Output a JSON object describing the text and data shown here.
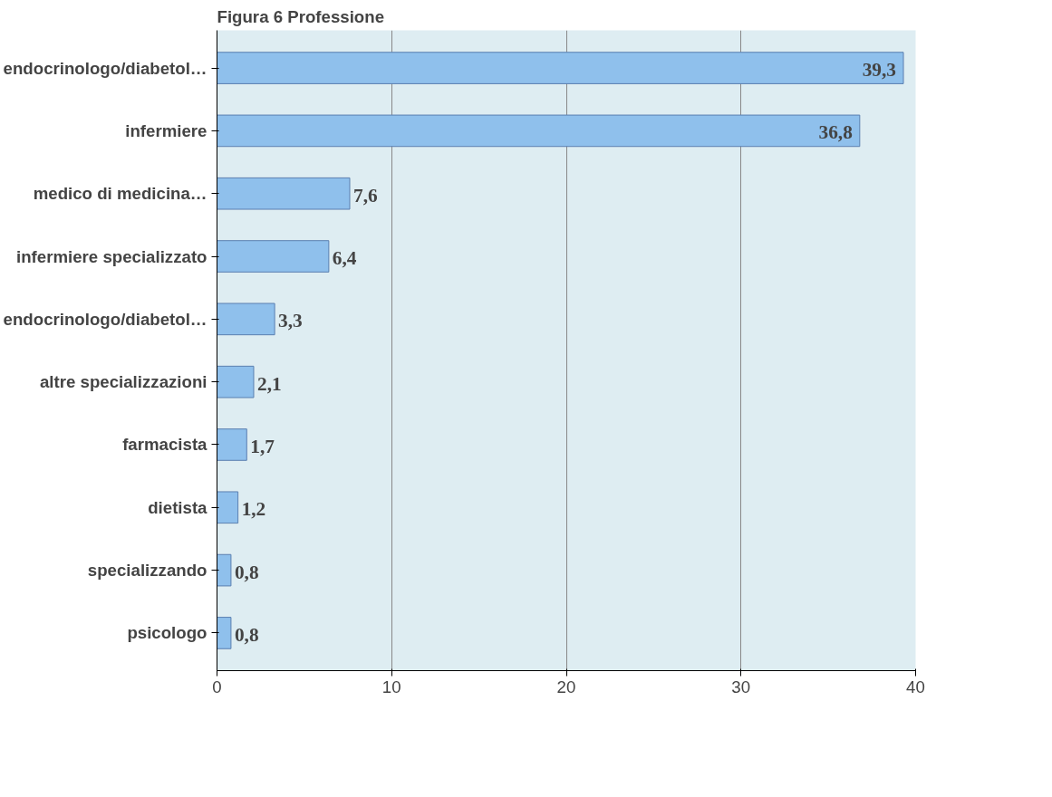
{
  "chart_data": {
    "type": "bar",
    "orientation": "horizontal",
    "title": "Figura 6 Professione",
    "categories": [
      "endocrinologo/diabetol…",
      "infermiere",
      "medico di medicina…",
      "infermiere specializzato",
      "endocrinologo/diabetol…",
      "altre specializzazioni",
      "farmacista",
      "dietista",
      "specializzando",
      "psicologo"
    ],
    "values": [
      39.3,
      36.8,
      7.6,
      6.4,
      3.3,
      2.1,
      1.7,
      1.2,
      0.8,
      0.8
    ],
    "value_labels": [
      "39,3",
      "36,8",
      "7,6",
      "6,4",
      "3,3",
      "2,1",
      "1,7",
      "1,2",
      "0,8",
      "0,8"
    ],
    "color": "#8fc0ec",
    "xlim": [
      0,
      40
    ],
    "xticks": [
      0,
      10,
      20,
      30,
      40
    ],
    "grid": "x"
  }
}
